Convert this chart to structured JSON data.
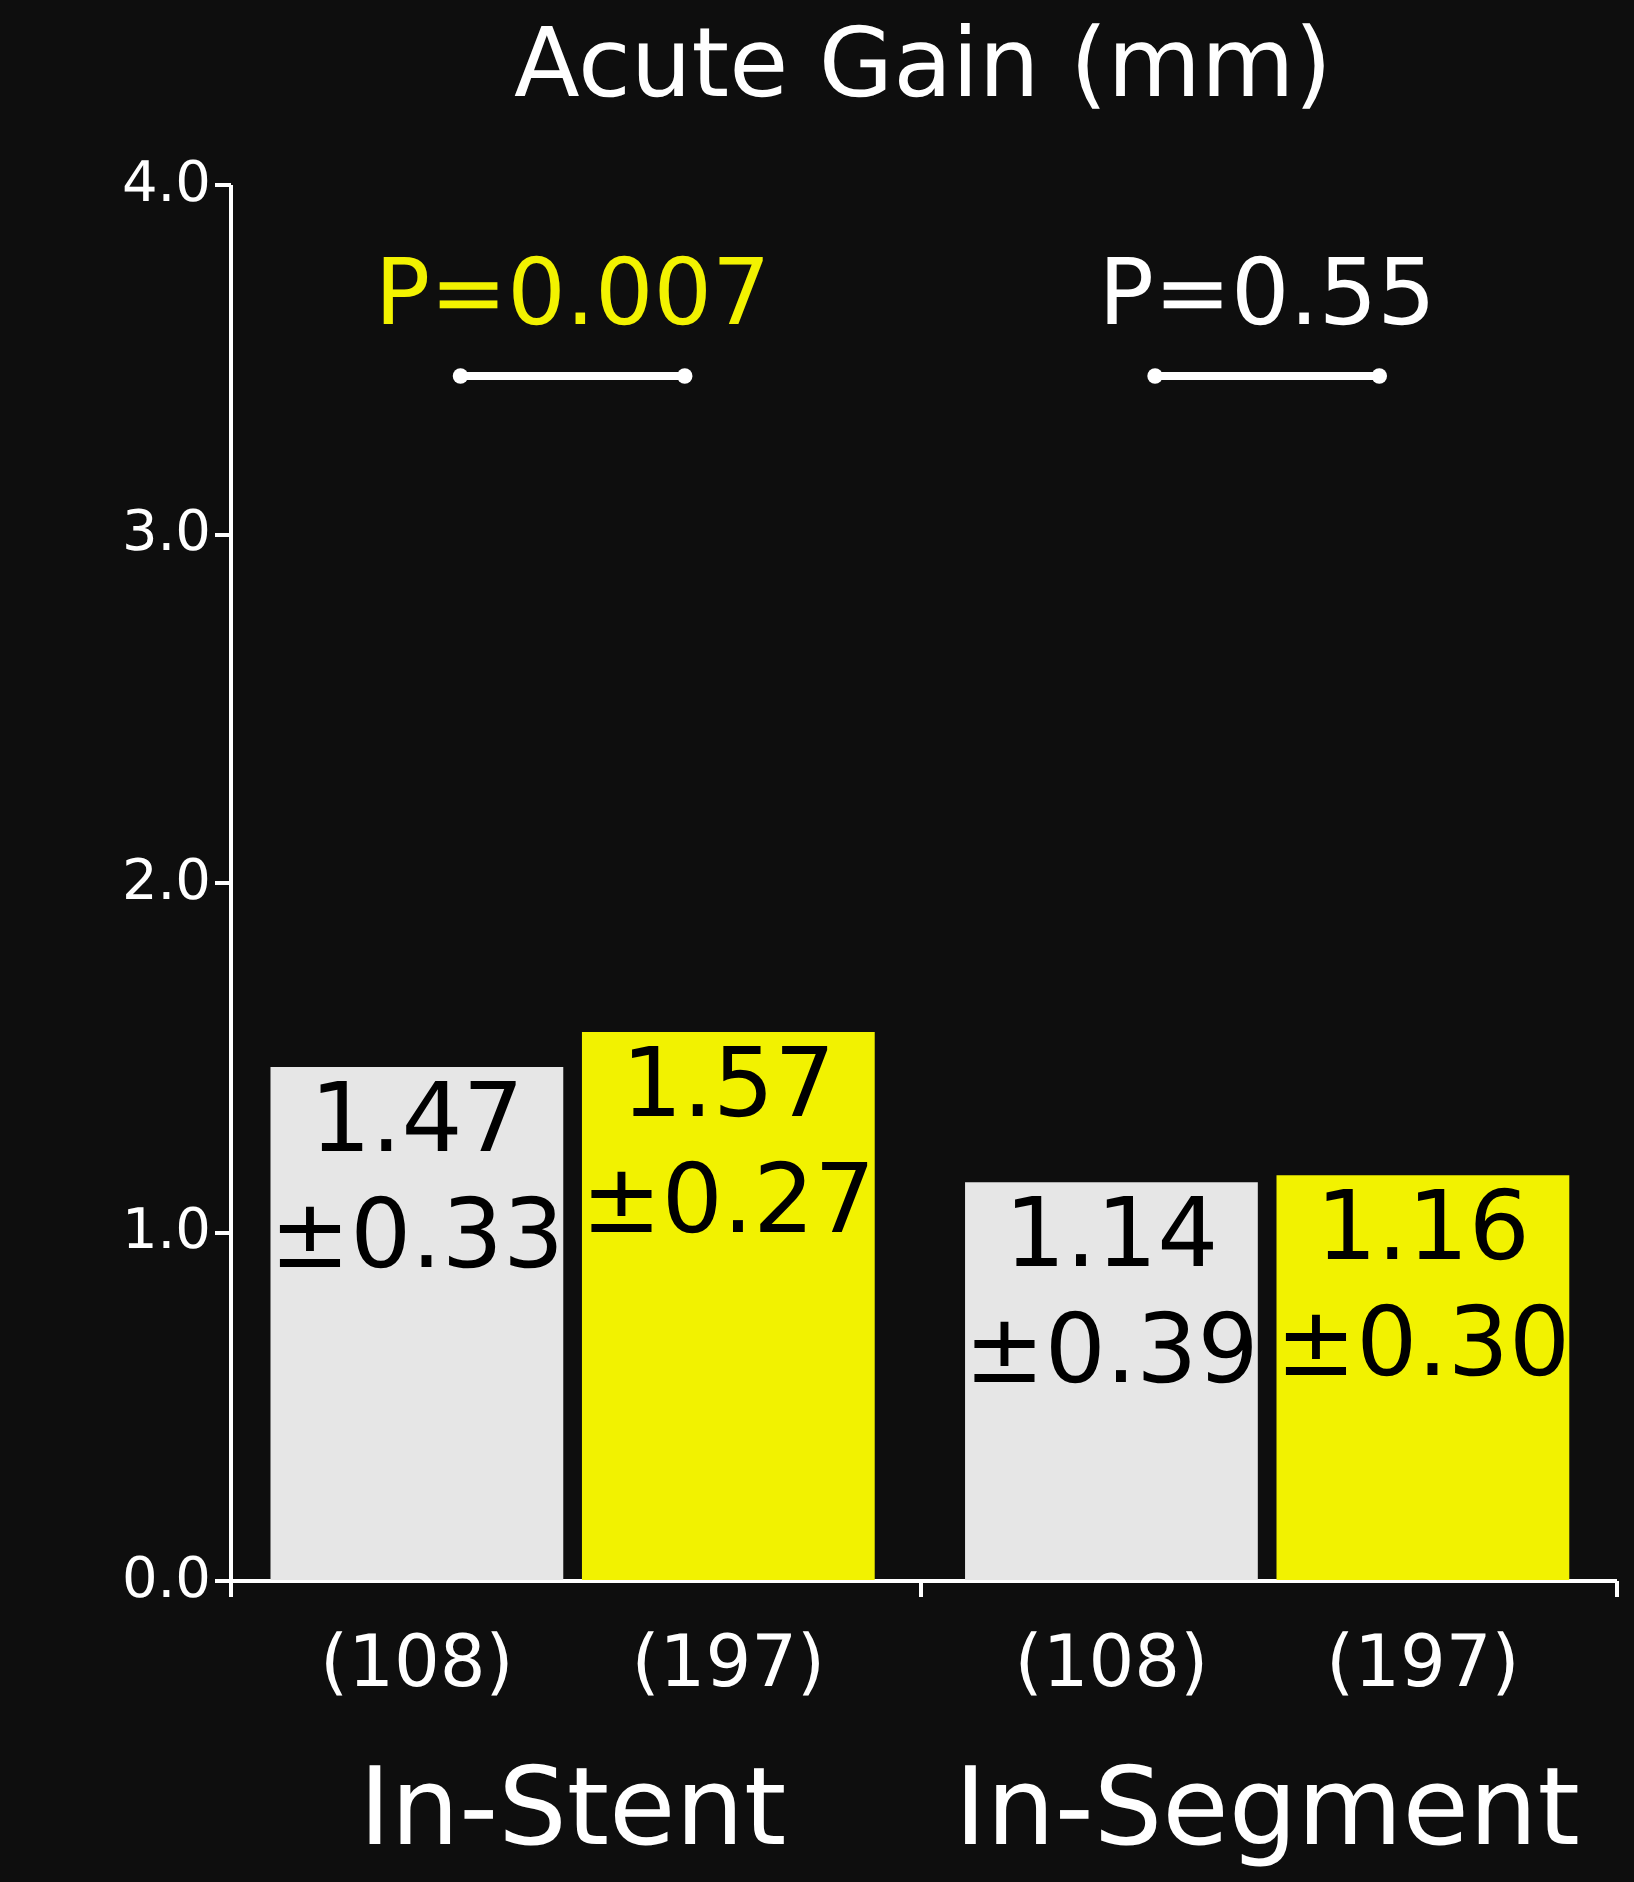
{
  "chart_data": {
    "type": "bar",
    "title": "Acute Gain (mm)",
    "categories": [
      "(108)",
      "(197)",
      "(108)",
      "(197)"
    ],
    "values": [
      1.47,
      1.57,
      1.14,
      1.16
    ],
    "colors": [
      "#e6e6e6",
      "#f2f200",
      "#e6e6e6",
      "#f2f200"
    ],
    "value_labels": [
      "1.47 ±0.33",
      "1.57 ±0.27",
      "1.14 ±0.39",
      "1.16 ±0.30"
    ],
    "ylim": [
      0,
      4
    ],
    "yticks": [
      {
        "value": 0,
        "label": "0.0"
      },
      {
        "value": 1,
        "label": "1.0"
      },
      {
        "value": 2,
        "label": "2.0"
      },
      {
        "value": 3,
        "label": "3.0"
      },
      {
        "value": 4,
        "label": "4.0"
      }
    ],
    "annotations": [
      "P=0.007",
      "P=0.55",
      "In-Stent",
      "In-Segment"
    ],
    "grid": false
  }
}
